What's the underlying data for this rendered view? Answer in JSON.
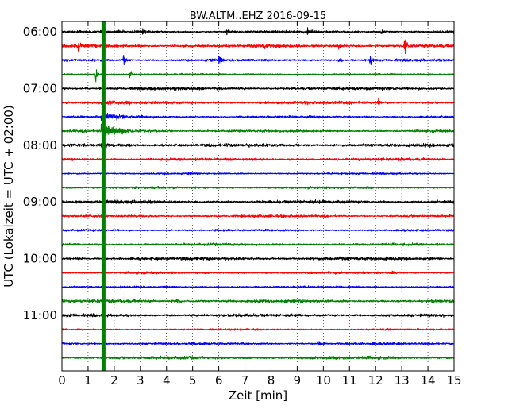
{
  "chart_data": {
    "type": "line",
    "title": "BW.ALTM..EHZ 2016-09-15",
    "xlabel": "Zeit  [min]",
    "ylabel": "UTC (Lokalzeit = UTC + 02:00)",
    "xlim": [
      0,
      15
    ],
    "x_ticks": [
      "0",
      "1",
      "2",
      "3",
      "4",
      "5",
      "6",
      "7",
      "8",
      "9",
      "10",
      "11",
      "12",
      "13",
      "14",
      "15"
    ],
    "y_ticks": [
      "06:00",
      "07:00",
      "08:00",
      "09:00",
      "10:00",
      "11:00"
    ],
    "grid": true,
    "trace_interval_minutes": 15,
    "trace_colors": [
      "#000000",
      "#ff0000",
      "#0000ff",
      "#008000"
    ],
    "traces": [
      {
        "start": "06:00",
        "events": [
          {
            "t": 3.1,
            "amp": 0.6
          },
          {
            "t": 6.3,
            "amp": 0.7
          },
          {
            "t": 9.4,
            "amp": 0.6
          },
          {
            "t": 12.2,
            "amp": 0.6
          }
        ]
      },
      {
        "start": "06:15",
        "events": [
          {
            "t": 0.6,
            "amp": 0.8
          },
          {
            "t": 7.7,
            "amp": 0.7
          },
          {
            "t": 10.6,
            "amp": 0.7
          },
          {
            "t": 13.1,
            "amp": 1.6
          }
        ]
      },
      {
        "start": "06:30",
        "events": [
          {
            "t": 2.35,
            "amp": 0.9
          },
          {
            "t": 6.0,
            "amp": 0.8
          },
          {
            "t": 10.6,
            "amp": 0.5
          },
          {
            "t": 11.8,
            "amp": 0.9
          }
        ]
      },
      {
        "start": "06:45",
        "events": [
          {
            "t": 1.3,
            "amp": 1.3
          },
          {
            "t": 2.6,
            "amp": 0.8
          }
        ]
      },
      {
        "start": "07:00",
        "events": []
      },
      {
        "start": "07:15",
        "events": [
          {
            "t": 12.1,
            "amp": 0.6
          }
        ]
      },
      {
        "start": "07:30",
        "events": []
      },
      {
        "start": "07:45",
        "events": []
      },
      {
        "start": "08:00",
        "events": []
      },
      {
        "start": "08:15",
        "events": []
      },
      {
        "start": "08:30",
        "events": []
      },
      {
        "start": "08:45",
        "events": []
      },
      {
        "start": "09:00",
        "events": []
      },
      {
        "start": "09:15",
        "events": []
      },
      {
        "start": "09:30",
        "events": []
      },
      {
        "start": "09:45",
        "events": []
      },
      {
        "start": "10:00",
        "events": []
      },
      {
        "start": "10:15",
        "events": [
          {
            "t": 12.6,
            "amp": 0.4
          }
        ]
      },
      {
        "start": "10:30",
        "events": []
      },
      {
        "start": "10:45",
        "events": [
          {
            "t": 4.4,
            "amp": 0.6
          }
        ]
      },
      {
        "start": "11:00",
        "events": []
      },
      {
        "start": "11:15",
        "events": []
      },
      {
        "start": "11:30",
        "events": [
          {
            "t": 9.8,
            "amp": 0.4
          }
        ]
      },
      {
        "start": "11:45",
        "events": []
      }
    ],
    "earthquake": {
      "t_min": 1.5,
      "start_trace": 5,
      "color": "#008000"
    }
  }
}
